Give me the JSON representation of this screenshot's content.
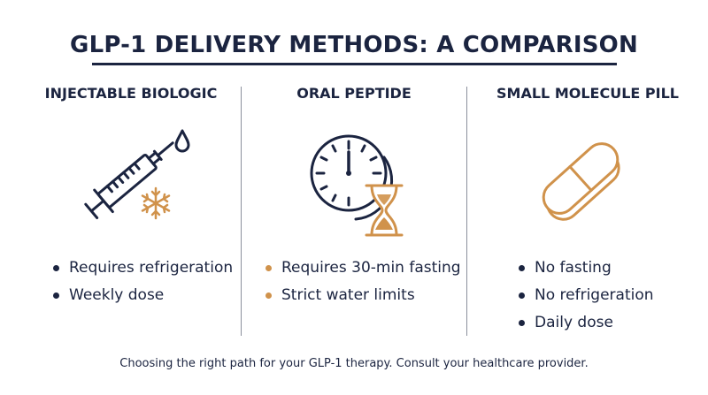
{
  "title": "GLP-1 DELIVERY METHODS: A COMPARISON",
  "columns": [
    {
      "heading": "INJECTABLE BIOLOGIC",
      "icon": "syringe-icon",
      "bullets": [
        "Requires refrigeration",
        "Weekly dose"
      ]
    },
    {
      "heading": "ORAL PEPTIDE",
      "icon": "clock-hourglass-icon",
      "bullets": [
        "Requires 30-min fasting",
        "Strict water limits"
      ]
    },
    {
      "heading": "SMALL MOLECULE PILL",
      "icon": "capsule-icon",
      "bullets": [
        "No fasting",
        "No refrigeration",
        "Daily dose"
      ]
    }
  ],
  "footer": "Choosing the right path for your GLP-1 therapy. Consult your healthcare provider.",
  "colors": {
    "navy": "#1b2440",
    "gold": "#d0924b"
  }
}
